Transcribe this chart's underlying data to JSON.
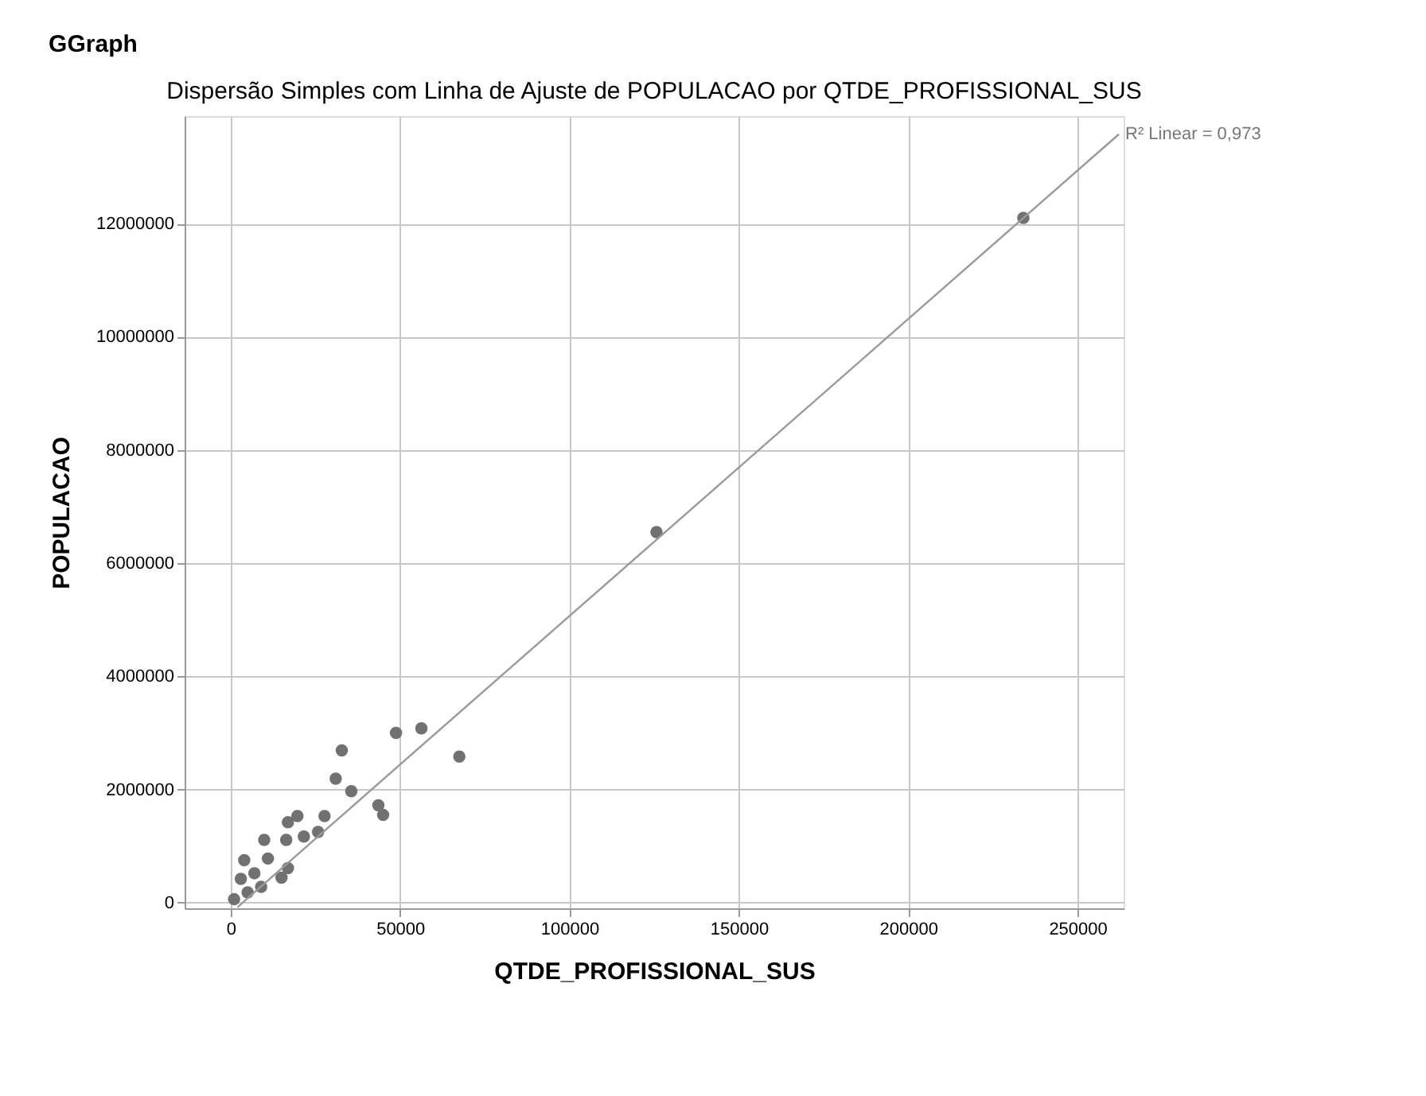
{
  "chart_data": {
    "type": "scatter",
    "title": "GGraph",
    "subtitle": "Dispersão Simples com Linha de Ajuste de POPULACAO por QTDE_PROFISSIONAL_SUS",
    "xlabel": "QTDE_PROFISSIONAL_SUS",
    "ylabel": "POPULACAO",
    "xlim": [
      -13600,
      263600
    ],
    "ylim": [
      -100000,
      13900000
    ],
    "xticks": [
      0,
      50000,
      100000,
      150000,
      200000,
      250000
    ],
    "yticks": [
      0,
      2000000,
      4000000,
      6000000,
      8000000,
      10000000,
      12000000
    ],
    "grid": true,
    "series": [
      {
        "color": "#717171",
        "marker": "circle",
        "x": [
          234000,
          125700,
          48800,
          56300,
          67500,
          32800,
          31000,
          35600,
          43600,
          45000,
          27700,
          25800,
          21600,
          19700,
          16900,
          16400,
          9900,
          15000,
          16900,
          1000,
          3000,
          5000,
          7000,
          9000,
          11000,
          4000
        ],
        "values": [
          12100000,
          6550000,
          3000000,
          3080000,
          2580000,
          2690000,
          2190000,
          1970000,
          1720000,
          1550000,
          1530000,
          1250000,
          1170000,
          1530000,
          1420000,
          1110000,
          1110000,
          440000,
          610000,
          60000,
          420000,
          180000,
          520000,
          280000,
          780000,
          750000
        ]
      },
      {
        "type": "line",
        "color": "#9a9a9a",
        "x": [
          2000,
          262200
        ],
        "values": [
          -80000,
          13580000
        ]
      }
    ],
    "annotations": [
      {
        "text": "R² Linear = 0,973",
        "x": 262200,
        "y": 13580000
      }
    ]
  }
}
